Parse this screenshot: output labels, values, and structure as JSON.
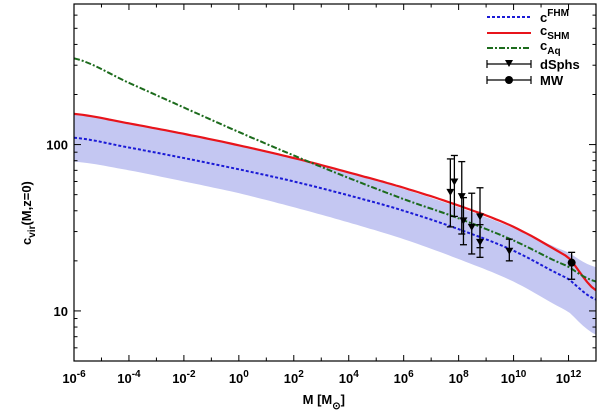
{
  "chart_data": {
    "type": "line",
    "x_scale": "log",
    "y_scale": "log",
    "xlim": [
      1e-06,
      10000000000000.0
    ],
    "ylim": [
      5,
      700
    ],
    "xlabel": {
      "main": "M [M",
      "sub": "⊙",
      "close": "]"
    },
    "ylabel": {
      "main": "c",
      "sub": "vir",
      "rest": "(M,z=0)"
    },
    "x_ticks": [
      {
        "value": 1e-06,
        "base": "10",
        "exp": "-6"
      },
      {
        "value": 0.0001,
        "base": "10",
        "exp": "-4"
      },
      {
        "value": 0.01,
        "base": "10",
        "exp": "-2"
      },
      {
        "value": 1,
        "base": "10",
        "exp": "0"
      },
      {
        "value": 100.0,
        "base": "10",
        "exp": "2"
      },
      {
        "value": 10000.0,
        "base": "10",
        "exp": "4"
      },
      {
        "value": 1000000.0,
        "base": "10",
        "exp": "6"
      },
      {
        "value": 100000000.0,
        "base": "10",
        "exp": "8"
      },
      {
        "value": 10000000000.0,
        "base": "10",
        "exp": "10"
      },
      {
        "value": 1000000000000.0,
        "base": "10",
        "exp": "12"
      }
    ],
    "y_ticks": [
      {
        "value": 10,
        "label": "10"
      },
      {
        "value": 100,
        "label": "100"
      }
    ],
    "band": {
      "color": "#c4c7f2",
      "x": [
        1e-06,
        0.0001,
        0.01,
        1,
        100.0,
        10000.0,
        1000000.0,
        100000000.0,
        10000000000.0,
        1000000000000.0,
        10000000000000.0
      ],
      "upper": [
        152,
        133,
        115,
        98,
        82,
        67.5,
        54,
        42,
        31.5,
        22.5,
        18.3
      ],
      "lower": [
        79,
        70,
        60,
        51,
        42,
        34,
        27,
        20.5,
        15,
        9.9,
        7.2
      ]
    },
    "series": [
      {
        "key": "fhm",
        "legend": {
          "main": "c",
          "sup": "FHM",
          "sub": ""
        },
        "color": "#1a1ad6",
        "style": "dotted",
        "x": [
          1e-06,
          0.0001,
          0.01,
          1,
          100.0,
          10000.0,
          1000000.0,
          100000000.0,
          10000000000.0,
          1000000000000.0,
          10000000000000.0
        ],
        "y": [
          110,
          96,
          83,
          71,
          60,
          49.5,
          40,
          31,
          23,
          15.6,
          11.7
        ]
      },
      {
        "key": "shm",
        "legend": {
          "main": "c",
          "sup": "",
          "sub": "SHM"
        },
        "color": "#e8141b",
        "style": "solid",
        "x": [
          1e-06,
          0.0001,
          0.01,
          1,
          100.0,
          10000.0,
          1000000.0,
          100000000.0,
          10000000000.0,
          1000000000000.0,
          10000000000000.0
        ],
        "y": [
          153,
          134,
          116,
          99,
          83,
          68,
          55,
          43,
          32,
          21,
          13.3
        ]
      },
      {
        "key": "aq",
        "legend": {
          "main": "c",
          "sup": "",
          "sub": "Aq"
        },
        "color": "#1c6b1c",
        "style": "dashdot",
        "x": [
          1e-06,
          0.0001,
          0.01,
          1,
          100.0,
          10000.0,
          1000000.0,
          100000000.0,
          10000000000.0,
          1000000000000.0,
          10000000000000.0
        ],
        "y": [
          330,
          235,
          167,
          119,
          86,
          63,
          47,
          36,
          26.5,
          18.5,
          15
        ]
      }
    ],
    "points": [
      {
        "key": "dsphs",
        "legend": "dSphs",
        "marker": "triangle-down",
        "color": "#000000",
        "data": [
          {
            "x": 50000000.0,
            "y": 52,
            "ylo": 32,
            "yhi": 82
          },
          {
            "x": 70000000.0,
            "y": 60,
            "ylo": 37,
            "yhi": 86
          },
          {
            "x": 130000000.0,
            "y": 49,
            "ylo": 29,
            "yhi": 79
          },
          {
            "x": 150000000.0,
            "y": 35,
            "ylo": 25,
            "yhi": 48
          },
          {
            "x": 300000000.0,
            "y": 32,
            "ylo": 22,
            "yhi": 51
          },
          {
            "x": 600000000.0,
            "y": 37,
            "ylo": 24,
            "yhi": 55
          },
          {
            "x": 600000000.0,
            "y": 26,
            "ylo": 21,
            "yhi": 33
          },
          {
            "x": 7000000000.0,
            "y": 23,
            "ylo": 20,
            "yhi": 27
          }
        ]
      },
      {
        "key": "mw",
        "legend": "MW",
        "marker": "circle",
        "color": "#000000",
        "data": [
          {
            "x": 1300000000000.0,
            "y": 19.5,
            "ylo": 15.5,
            "yhi": 22.5
          }
        ]
      }
    ],
    "legend_position": "top-right"
  }
}
